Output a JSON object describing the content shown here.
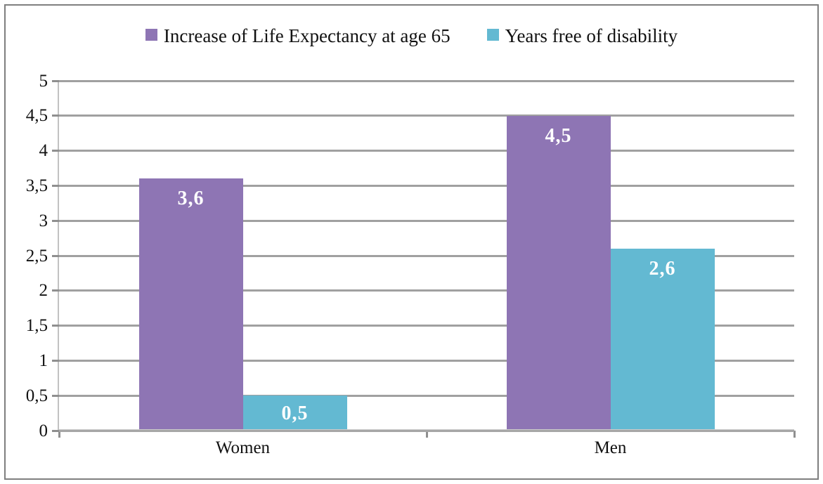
{
  "chart_data": {
    "type": "bar",
    "title": "",
    "categories": [
      "Women",
      "Men"
    ],
    "series": [
      {
        "name": "Increase of Life Expectancy at age 65",
        "color": "#8e75b4",
        "values": [
          3.6,
          4.5
        ],
        "value_labels": [
          "3,6",
          "4,5"
        ]
      },
      {
        "name": "Years free of disability",
        "color": "#63b9d2",
        "values": [
          0.5,
          2.6
        ],
        "value_labels": [
          "0,5",
          "2,6"
        ]
      }
    ],
    "xlabel": "",
    "ylabel": "",
    "ylim": [
      0,
      5
    ],
    "ytick_step": 0.5,
    "ytick_values": [
      0,
      0.5,
      1,
      1.5,
      2,
      2.5,
      3,
      3.5,
      4,
      4.5,
      5
    ],
    "ytick_labels": [
      "0",
      "0,5",
      "1",
      "1,5",
      "2",
      "2,5",
      "3",
      "3,5",
      "4",
      "4,5",
      "5"
    ],
    "grid": true,
    "legend_position": "top",
    "bar_value_label_color": "#ffffff"
  },
  "legend": {
    "items": [
      {
        "label": "Increase of Life Expectancy at age 65",
        "swatch_color": "#8e75b4"
      },
      {
        "label": "Years free of disability",
        "swatch_color": "#63b9d2"
      }
    ]
  },
  "colors": {
    "series_purple": "#8e75b4",
    "series_teal": "#63b9d2",
    "gridline": "#a0a0a0",
    "axis_line": "#a6a6a6",
    "tick": "#8f8f8f",
    "outer_border": "#7f7f7f",
    "text": "#111111",
    "background": "#ffffff"
  }
}
